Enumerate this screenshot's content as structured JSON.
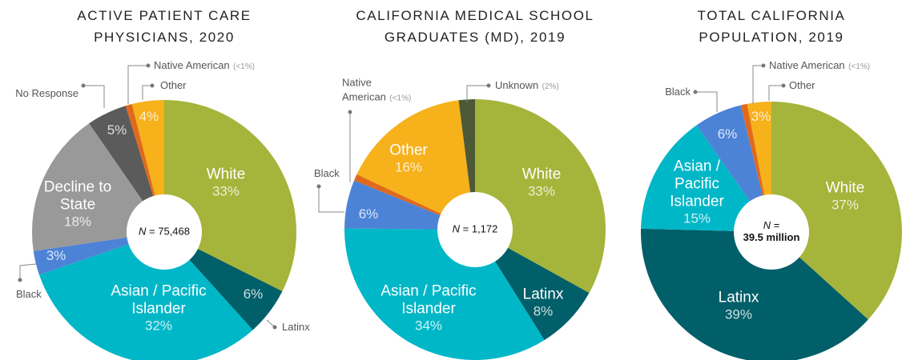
{
  "chart_data": [
    {
      "type": "pie",
      "title": "ACTIVE PATIENT CARE PHYSICIANS, 2020",
      "n_symbol": "N",
      "n_equals": "=",
      "n_value": "75,468",
      "categories": [
        "White",
        "Latinx",
        "Asian / Pacific Islander",
        "Black",
        "Decline to State",
        "No Response",
        "Native American",
        "Other"
      ],
      "values": [
        33,
        6,
        32,
        3,
        18,
        5,
        0.8,
        4
      ],
      "value_labels": [
        "33%",
        "6%",
        "32%",
        "3%",
        "18%",
        "5%",
        "(<1%)",
        "4%"
      ],
      "colors": [
        "#a5b43a",
        "#015f69",
        "#00b7c7",
        "#4d83d6",
        "#999999",
        "#5b5b5b",
        "#e0691c",
        "#f6b11b"
      ]
    },
    {
      "type": "pie",
      "title": "CALIFORNIA MEDICAL SCHOOL GRADUATES (MD), 2019",
      "n_symbol": "N",
      "n_equals": "=",
      "n_value": "1,172",
      "categories": [
        "White",
        "Latinx",
        "Asian / Pacific Islander",
        "Black",
        "Native American",
        "Other",
        "Unknown"
      ],
      "values": [
        33,
        8,
        34,
        6,
        0.8,
        16,
        2
      ],
      "value_labels": [
        "33%",
        "8%",
        "34%",
        "6%",
        "(<1%)",
        "16%",
        "(2%)"
      ],
      "colors": [
        "#a5b43a",
        "#015f69",
        "#00b7c7",
        "#4d83d6",
        "#e0691c",
        "#f6b11b",
        "#4d5935"
      ]
    },
    {
      "type": "pie",
      "title": "TOTAL CALIFORNIA POPULATION, 2019",
      "n_symbol": "N",
      "n_equals": "=",
      "n_value": "39.5 million",
      "categories": [
        "White",
        "Latinx",
        "Asian / Pacific Islander",
        "Black",
        "Native American",
        "Other"
      ],
      "values": [
        37,
        39,
        15,
        6,
        0.8,
        3
      ],
      "value_labels": [
        "37%",
        "39%",
        "15%",
        "6%",
        "(<1%)",
        "3%"
      ],
      "colors": [
        "#a5b43a",
        "#015f69",
        "#00b7c7",
        "#4d83d6",
        "#e0691c",
        "#f6b11b"
      ]
    }
  ]
}
